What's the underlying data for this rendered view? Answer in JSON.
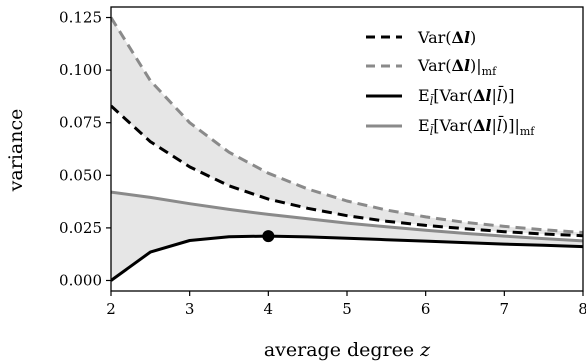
{
  "chart_data": {
    "type": "line",
    "xlabel": "average degree z",
    "ylabel": "variance",
    "xlim": [
      2,
      8
    ],
    "ylim": [
      -0.005,
      0.13
    ],
    "xticks": [
      2,
      3,
      4,
      5,
      6,
      7,
      8
    ],
    "yticks": [
      "0.000",
      "0.025",
      "0.050",
      "0.075",
      "0.100",
      "0.125"
    ],
    "grid": false,
    "legend_position": "top-right",
    "x": [
      2.0,
      2.5,
      3.0,
      3.5,
      4.0,
      4.5,
      5.0,
      5.5,
      6.0,
      6.5,
      7.0,
      7.5,
      8.0
    ],
    "series": [
      {
        "name": "Var(Δl)",
        "style": "dashed",
        "color": "#000000",
        "values": [
          0.083,
          0.066,
          0.054,
          0.045,
          0.0387,
          0.0343,
          0.0308,
          0.0282,
          0.0262,
          0.0246,
          0.0232,
          0.0221,
          0.0213
        ]
      },
      {
        "name": "Var(Δl)|mf",
        "style": "dashed",
        "color": "#8a8a8a",
        "values": [
          0.125,
          0.095,
          0.075,
          0.061,
          0.051,
          0.0435,
          0.0378,
          0.0335,
          0.0302,
          0.0276,
          0.0257,
          0.0241,
          0.0228
        ]
      },
      {
        "name": "E_l̄[Var(Δl|l̄)]",
        "style": "solid",
        "color": "#000000",
        "values": [
          0.0,
          0.0135,
          0.019,
          0.0208,
          0.0211,
          0.0207,
          0.0201,
          0.0194,
          0.0187,
          0.018,
          0.0173,
          0.0167,
          0.0161
        ]
      },
      {
        "name": "E_l̄[Var(Δl|l̄)]|mf",
        "style": "solid",
        "color": "#8a8a8a",
        "values": [
          0.042,
          0.0395,
          0.0365,
          0.0338,
          0.0314,
          0.0293,
          0.0273,
          0.0255,
          0.0239,
          0.0224,
          0.0211,
          0.0199,
          0.0188
        ]
      }
    ],
    "marker": {
      "x": 4,
      "y": 0.0211
    },
    "shaded_regions": [
      {
        "between": [
          "Var(Δl)",
          "Var(Δl)|mf"
        ],
        "color": "#e6e6e6"
      },
      {
        "between": [
          "E_l̄[Var(Δl|l̄)]",
          "E_l̄[Var(Δl|l̄)]|mf"
        ],
        "color": "#e6e6e6"
      }
    ]
  },
  "legend": [
    {
      "pre": "Var(",
      "bold": "Δl",
      "post": ")",
      "sub": ""
    },
    {
      "pre": "Var(",
      "bold": "Δl",
      "post": ")|",
      "sub": "mf"
    },
    {
      "pre": "E",
      "bold": "Δl",
      "post": "",
      "sub": "l̄"
    },
    {
      "pre": "E",
      "bold": "Δl",
      "post": "",
      "sub": "l̄"
    }
  ]
}
